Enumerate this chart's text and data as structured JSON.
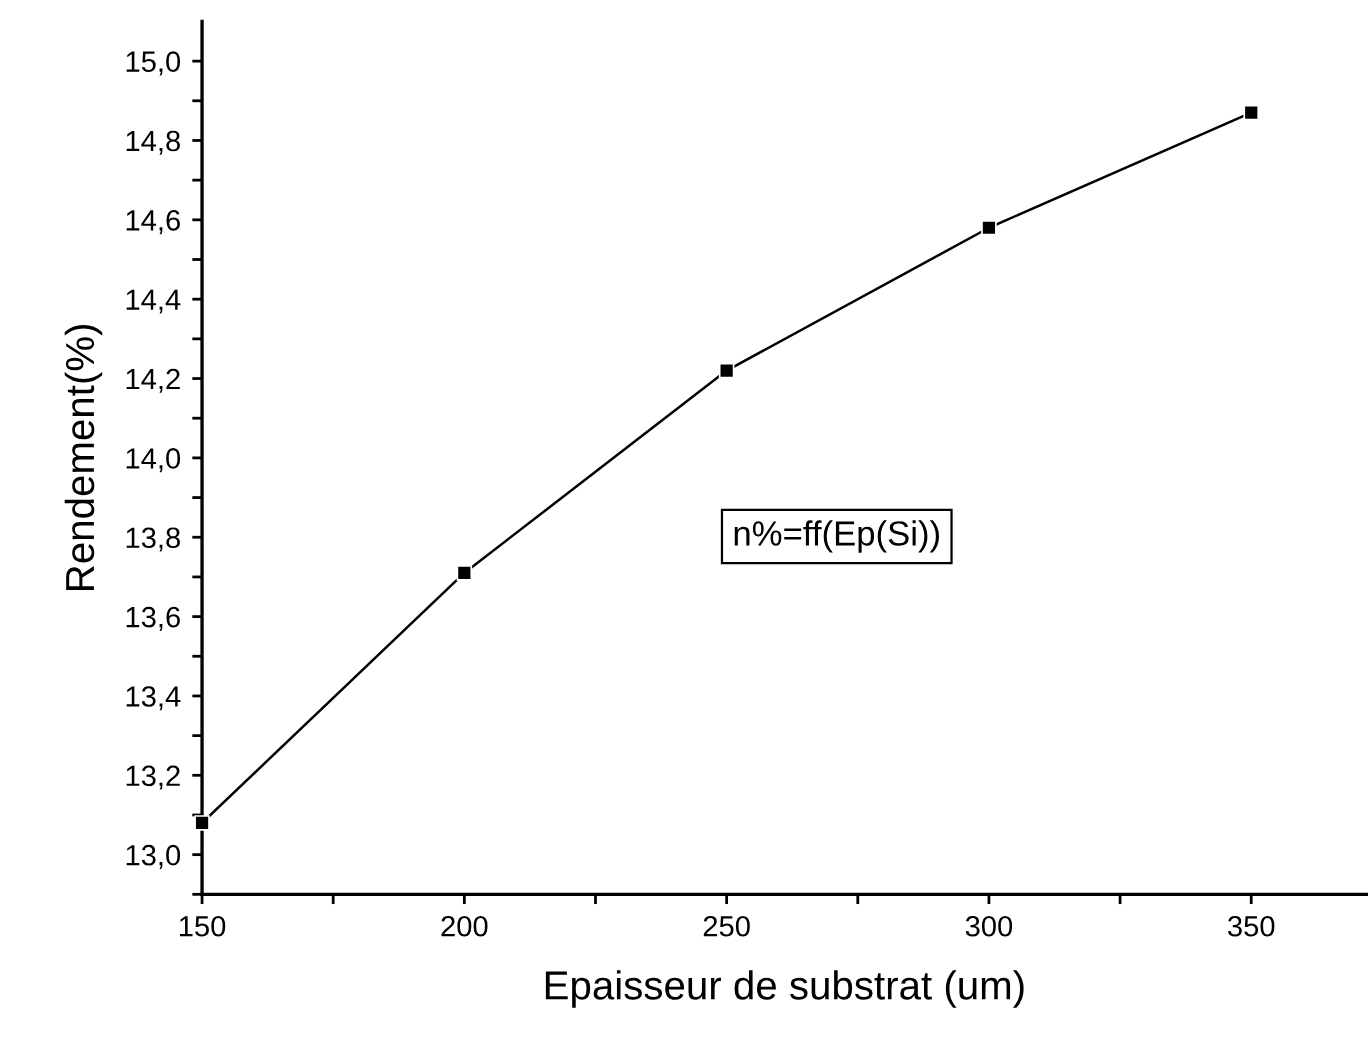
{
  "chart_data": {
    "type": "line",
    "xlabel": "Epaisseur de substrat (um)",
    "ylabel": "Rendement(%)",
    "x": [
      150,
      200,
      250,
      300,
      350
    ],
    "series": [
      {
        "color": "#000000",
        "values": [
          13.08,
          13.71,
          14.22,
          14.58,
          14.87
        ]
      }
    ],
    "marker": "square",
    "line_style": "solid",
    "grid": false,
    "legend": false,
    "xlim": [
      150,
      372
    ],
    "ylim": [
      12.9,
      15.1
    ],
    "xticks": [
      150,
      {
        "value": 175,
        "label": null
      },
      200,
      {
        "value": 225,
        "label": null
      },
      250,
      {
        "value": 275,
        "label": null
      },
      300,
      {
        "value": 325,
        "label": null
      },
      350
    ],
    "yticks": [
      {
        "value": 12.9,
        "label": null
      },
      {
        "value": 13.0,
        "label": "13,0"
      },
      {
        "value": 13.1,
        "label": null
      },
      {
        "value": 13.2,
        "label": "13,2"
      },
      {
        "value": 13.3,
        "label": null
      },
      {
        "value": 13.4,
        "label": "13,4"
      },
      {
        "value": 13.5,
        "label": null
      },
      {
        "value": 13.6,
        "label": "13,6"
      },
      {
        "value": 13.7,
        "label": null
      },
      {
        "value": 13.8,
        "label": "13,8"
      },
      {
        "value": 13.9,
        "label": null
      },
      {
        "value": 14.0,
        "label": "14,0"
      },
      {
        "value": 14.1,
        "label": null
      },
      {
        "value": 14.2,
        "label": "14,2"
      },
      {
        "value": 14.3,
        "label": null
      },
      {
        "value": 14.4,
        "label": "14,4"
      },
      {
        "value": 14.5,
        "label": null
      },
      {
        "value": 14.6,
        "label": "14,6"
      },
      {
        "value": 14.7,
        "label": null
      },
      {
        "value": 14.8,
        "label": "14,8"
      },
      {
        "value": 14.9,
        "label": null
      },
      {
        "value": 15.0,
        "label": "15,0"
      }
    ],
    "annotations": [
      "n%=ff(Ep(Si))"
    ]
  }
}
